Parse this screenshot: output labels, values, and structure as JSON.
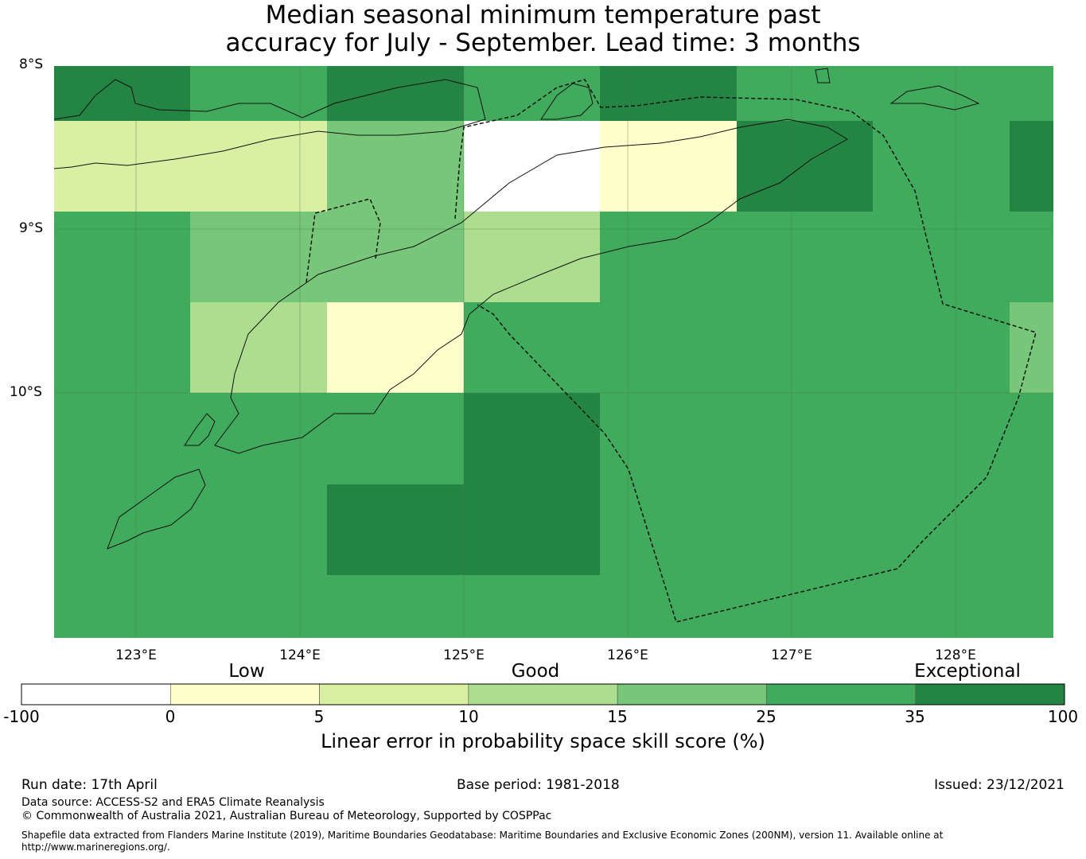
{
  "title": {
    "line1": "Median seasonal minimum temperature past",
    "line2": "accuracy for July - September. Lead time: 3 months"
  },
  "map": {
    "lat_labels": [
      "8°S",
      "9°S",
      "10°S"
    ],
    "lon_labels": [
      "123°E",
      "124°E",
      "125°E",
      "126°E",
      "127°E",
      "128°E"
    ],
    "grid_rows": [
      [
        "35",
        "25",
        "35",
        "25",
        "35",
        "25",
        "25",
        "25"
      ],
      [
        "5",
        "5",
        "15",
        "-100",
        "0",
        "35",
        "25",
        "35"
      ],
      [
        "25",
        "15",
        "15",
        "10",
        "25",
        "25",
        "25",
        "25"
      ],
      [
        "25",
        "10",
        "0",
        "25",
        "25",
        "25",
        "25",
        "15"
      ],
      [
        "25",
        "25",
        "25",
        "35",
        "25",
        "25",
        "25",
        "25"
      ],
      [
        "25",
        "25",
        "35",
        "35",
        "25",
        "25",
        "25",
        "25"
      ],
      [
        "25",
        "25",
        "25",
        "25",
        "25",
        "25",
        "25",
        "25"
      ]
    ]
  },
  "colorbar": {
    "category_labels": [
      "Low",
      "Good",
      "Exceptional"
    ],
    "tick_labels": [
      "-100",
      "0",
      "5",
      "10",
      "15",
      "25",
      "35",
      "100"
    ],
    "bins": [
      {
        "from": -100,
        "to": 0,
        "color": "#ffffff"
      },
      {
        "from": 0,
        "to": 5,
        "color": "#ffffcc"
      },
      {
        "from": 5,
        "to": 10,
        "color": "#d9f0a3"
      },
      {
        "from": 10,
        "to": 15,
        "color": "#addd8e"
      },
      {
        "from": 15,
        "to": 25,
        "color": "#78c679"
      },
      {
        "from": 25,
        "to": 35,
        "color": "#41ab5d"
      },
      {
        "from": 35,
        "to": 100,
        "color": "#238443"
      }
    ],
    "title": "Linear error in probability space skill score (%)"
  },
  "footer": {
    "run_date": "Run date: 17th April",
    "base_period": "Base period: 1981-2018",
    "issued": "Issued: 23/12/2021",
    "data_source": "Data source: ACCESS-S2 and ERA5 Climate Reanalysis",
    "copyright": "© Commonwealth of Australia 2021, Australian Bureau of Meteorology, Supported by COSPPac",
    "shapefile_line1": "Shapefile data extracted from Flanders Marine Institute (2019), Maritime Boundaries Geodatabase: Maritime Boundaries and Exclusive Economic Zones (200NM), version 11. Available online at",
    "shapefile_line2": "http://www.marineregions.org/."
  }
}
